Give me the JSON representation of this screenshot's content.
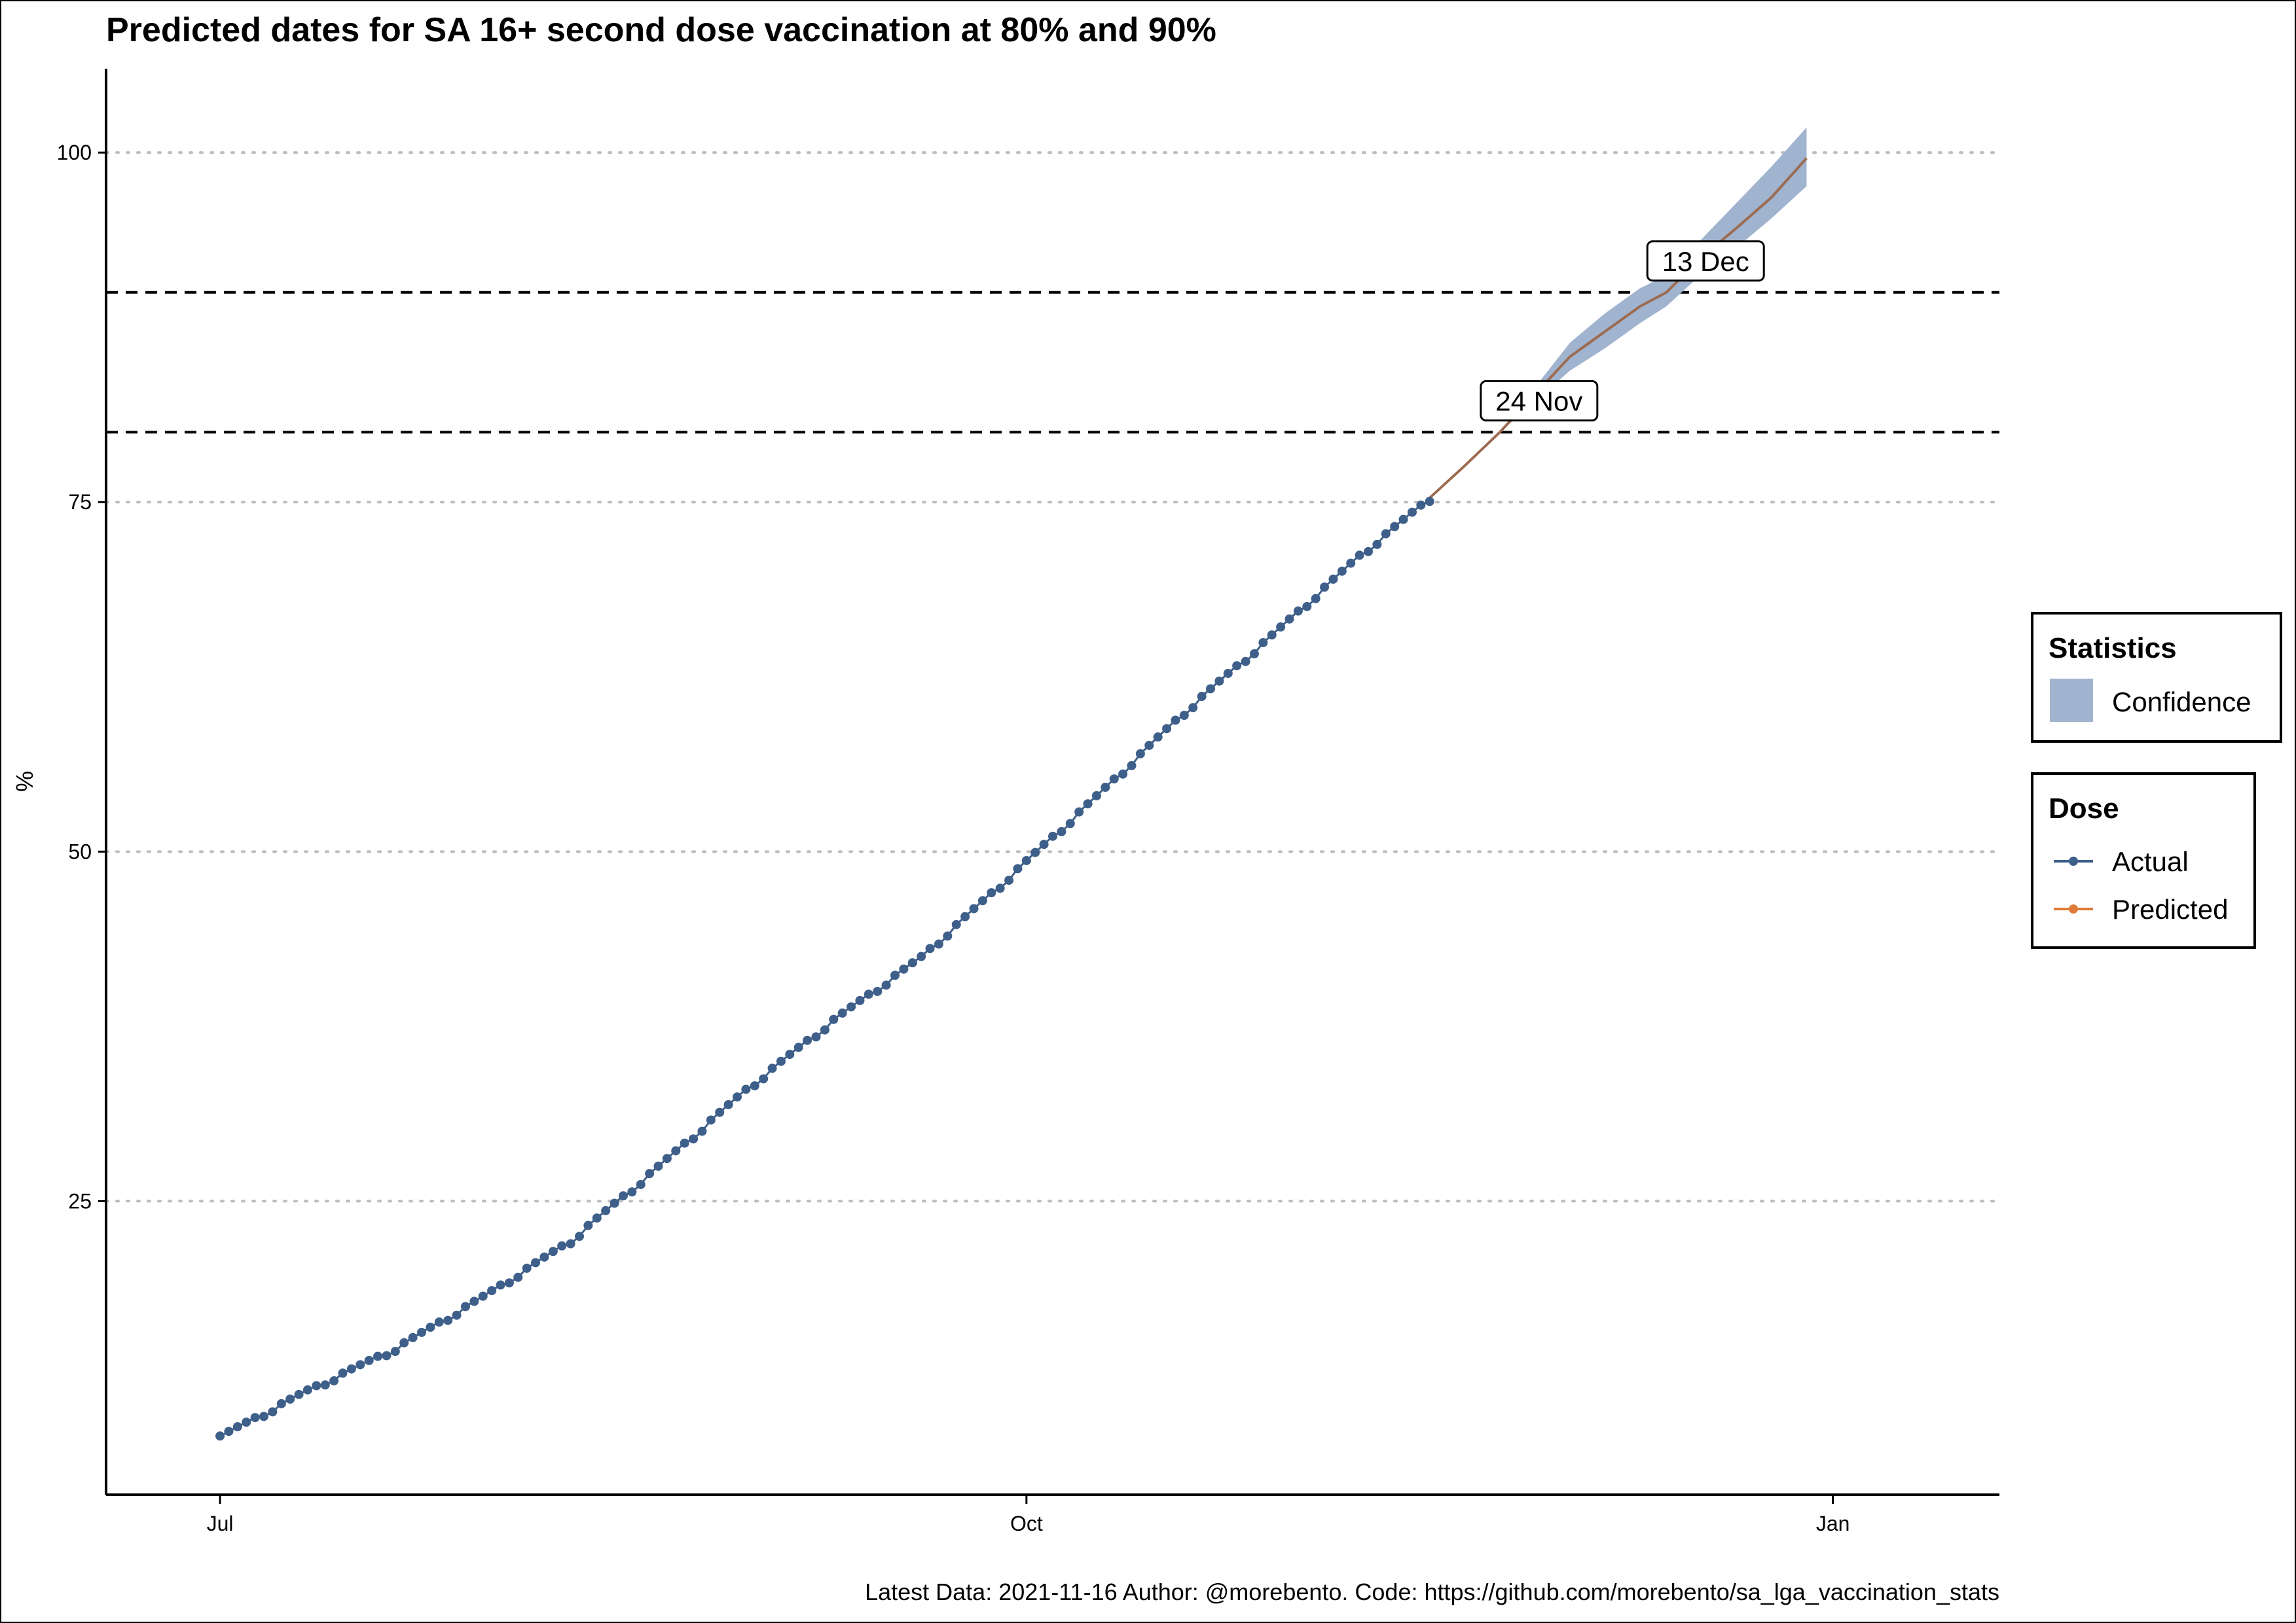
{
  "chart_data": {
    "type": "line",
    "title": "Predicted dates for SA 16+ second dose vaccination at 80% and 90%",
    "xlabel": "",
    "ylabel": "%",
    "caption": "Latest Data: 2021-11-16 Author: @morebento. Code: https://github.com/morebento/sa_lga_vaccination_stats",
    "x_ticks": [
      "Jul",
      "Oct",
      "Jan"
    ],
    "y_ticks": [
      25,
      50,
      75,
      100
    ],
    "ylim": [
      4,
      106
    ],
    "xlim": [
      "2021-06-18",
      "2022-01-20"
    ],
    "grid": "horizontal dotted",
    "thresholds": [
      80,
      90
    ],
    "annotations": [
      {
        "label": "24 Nov",
        "date": "2021-11-24",
        "value": 80
      },
      {
        "label": "13 Dec",
        "date": "2021-12-13",
        "value": 90
      }
    ],
    "colors": {
      "actual": "#3e5f8a",
      "predicted": "#e07b39",
      "predicted_line": "#9c6b50",
      "confidence": "#a0b3cf"
    },
    "series": [
      {
        "name": "Actual",
        "x": [
          "2021-07-01",
          "2021-07-11",
          "2021-07-21",
          "2021-07-31",
          "2021-08-10",
          "2021-08-20",
          "2021-08-30",
          "2021-09-09",
          "2021-09-19",
          "2021-09-29",
          "2021-10-09",
          "2021-10-19",
          "2021-10-29",
          "2021-11-08",
          "2021-11-16"
        ],
        "values": [
          8.2,
          11.5,
          14.5,
          18.2,
          22.2,
          27.5,
          33.0,
          38.0,
          42.5,
          48.2,
          54.0,
          60.0,
          65.5,
          71.2,
          75.3
        ]
      },
      {
        "name": "Predicted",
        "x": [
          "2021-11-16",
          "2021-11-20",
          "2021-11-24",
          "2021-11-28",
          "2021-12-02",
          "2021-12-06",
          "2021-12-10",
          "2021-12-13",
          "2021-12-17",
          "2021-12-21",
          "2021-12-25",
          "2021-12-29"
        ],
        "values": [
          75.3,
          77.6,
          80.0,
          82.7,
          85.4,
          87.2,
          89.0,
          90.0,
          92.5,
          94.6,
          96.8,
          99.6
        ]
      }
    ],
    "confidence": {
      "name": "Confidence",
      "x": [
        "2021-11-24",
        "2021-11-28",
        "2021-12-02",
        "2021-12-06",
        "2021-12-10",
        "2021-12-13",
        "2021-12-17",
        "2021-12-21",
        "2021-12-25",
        "2021-12-29"
      ],
      "lower": [
        80.0,
        82.2,
        84.4,
        86.0,
        87.8,
        89.0,
        91.3,
        93.2,
        95.3,
        97.6
      ],
      "upper": [
        80.0,
        83.2,
        86.4,
        88.5,
        90.3,
        91.2,
        93.8,
        96.4,
        99.0,
        101.8
      ]
    },
    "legends": [
      {
        "title": "Statistics",
        "items": [
          "Confidence"
        ]
      },
      {
        "title": "Dose",
        "items": [
          "Actual",
          "Predicted"
        ]
      }
    ]
  }
}
